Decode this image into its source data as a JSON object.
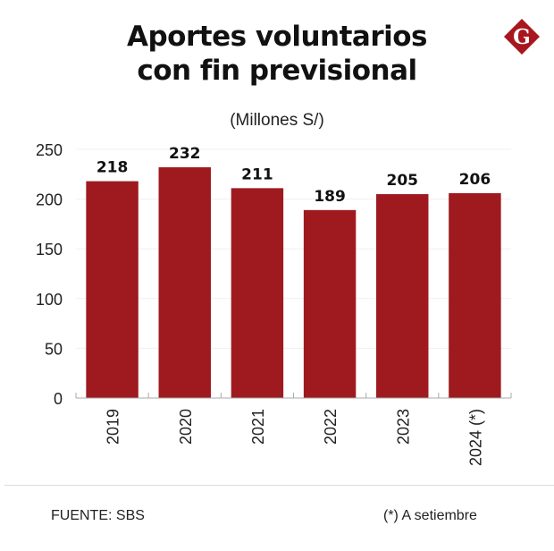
{
  "header": {
    "title_line1": "Aportes voluntarios",
    "title_line2": "con fin previsional",
    "subtitle": "(Millones S/)",
    "logo_letter": "G",
    "logo_icon": "brand-diamond-logo"
  },
  "footer": {
    "source": "FUENTE: SBS",
    "note": "(*) A setiembre"
  },
  "colors": {
    "bar": "#9E1A1F",
    "logo": "#A8171E",
    "text": "#111111",
    "grid": "#f0f0f0",
    "axis": "#aaaaaa"
  },
  "chart_data": {
    "type": "bar",
    "title": "Aportes voluntarios con fin previsional",
    "subtitle": "(Millones S/)",
    "xlabel": "",
    "ylabel": "",
    "categories": [
      "2019",
      "2020",
      "2021",
      "2022",
      "2023",
      "2024 (*)"
    ],
    "values": [
      218,
      232,
      211,
      189,
      205,
      206
    ],
    "data_labels": [
      "218",
      "232",
      "211",
      "189",
      "205",
      "206"
    ],
    "ylim": [
      0,
      250
    ],
    "yticks": [
      0,
      50,
      100,
      150,
      200,
      250
    ],
    "ytick_labels": [
      "0",
      "50",
      "100",
      "150",
      "200",
      "250"
    ],
    "grid": true,
    "legend": "none",
    "x_tick_rotation": "vertical"
  }
}
